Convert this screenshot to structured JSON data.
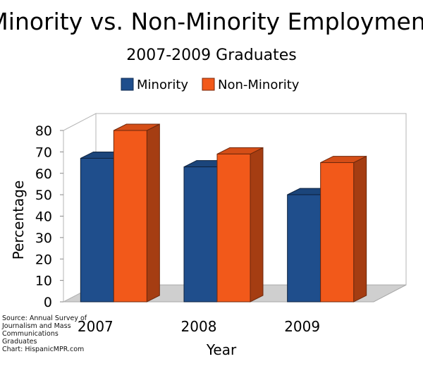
{
  "chart_data": {
    "type": "bar",
    "title": "Minority vs. Non-Minority Employment",
    "subtitle": "2007-2009 Graduates",
    "xlabel": "Year",
    "ylabel": "Percentage",
    "categories": [
      "2007",
      "2008",
      "2009"
    ],
    "series": [
      {
        "name": "Minority",
        "values": [
          67,
          63,
          50
        ],
        "color": "#1f4e8c"
      },
      {
        "name": "Non-Minority",
        "values": [
          80,
          69,
          65
        ],
        "color": "#f2591a"
      }
    ],
    "ylim": [
      0,
      80
    ],
    "yticks": [
      "0",
      "10",
      "20",
      "30",
      "40",
      "50",
      "60",
      "70",
      "80"
    ],
    "legend_position": "top-center",
    "grid": false,
    "style": "3d"
  },
  "source": {
    "lines": [
      "Source: Annual Survey of",
      "Journalism and Mass",
      "Communications",
      "Graduates",
      "Chart: HispanicMPR.com"
    ]
  }
}
